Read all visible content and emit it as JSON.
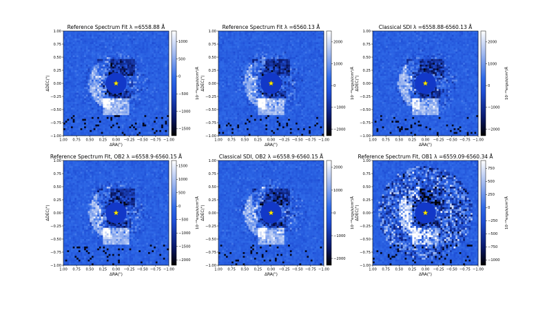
{
  "figure": {
    "colormap": [
      "#000000",
      "#0a1a6e",
      "#1f4fd6",
      "#2f6ae8",
      "#9fb8f0",
      "#ffffff"
    ],
    "mask_color": "#1238c8",
    "star_color": "#ffe800",
    "axis_labels": {
      "x": "ΔRA(\")",
      "y": "ΔDEC(\")"
    },
    "colorbar_label": "10⁻¹⁶ergs/s/cm²/Å",
    "x_ticks": [
      "1.00",
      "0.75",
      "0.50",
      "0.25",
      "0.00",
      "−0.25",
      "−0.50",
      "−0.75",
      "−1.00"
    ],
    "y_ticks": [
      "1.00",
      "0.75",
      "0.50",
      "0.25",
      "0.00",
      "−0.25",
      "−0.50",
      "−0.75",
      "−1.00"
    ]
  },
  "chart_data": [
    {
      "type": "heatmap",
      "title": "Reference Spectrum Fit λ =6558.88 Å",
      "xlabel": "ΔRA(\")",
      "ylabel": "ΔDEC(\")",
      "xlim": [
        1.0,
        -1.0
      ],
      "ylim": [
        -1.0,
        1.0
      ],
      "colorbar_label": "10⁻¹⁶ergs/s/cm²/Å",
      "colorbar_range": [
        -1700,
        1300
      ],
      "colorbar_ticks": [
        "1000",
        "500",
        "0",
        "−500",
        "−1000",
        "−1500"
      ],
      "colorbar_tick_values": [
        1000,
        500,
        0,
        -500,
        -1000,
        -1500
      ],
      "mask_radius_arcsec": 0.2,
      "star_position": [
        0.0,
        0.0
      ]
    },
    {
      "type": "heatmap",
      "title": "Reference Spectrum Fit λ =6560.13 Å",
      "xlabel": "ΔRA(\")",
      "ylabel": "ΔDEC(\")",
      "xlim": [
        1.0,
        -1.0
      ],
      "ylim": [
        -1.0,
        1.0
      ],
      "colorbar_label": "10⁻¹⁶ergs/s/cm²/Å",
      "colorbar_range": [
        -2300,
        2500
      ],
      "colorbar_ticks": [
        "2000",
        "1000",
        "0",
        "−1000",
        "−2000"
      ],
      "colorbar_tick_values": [
        2000,
        1000,
        0,
        -1000,
        -2000
      ],
      "mask_radius_arcsec": 0.2,
      "star_position": [
        0.0,
        0.0
      ]
    },
    {
      "type": "heatmap",
      "title": "Classical SDI λ =6558.88-6560.13 Å",
      "xlabel": "ΔRA(\")",
      "ylabel": "ΔDEC(\")",
      "xlim": [
        1.0,
        -1.0
      ],
      "ylim": [
        -1.0,
        1.0
      ],
      "colorbar_label": "10⁻¹⁶ergs/s/cm²/Å",
      "colorbar_range": [
        -2300,
        2500
      ],
      "colorbar_ticks": [
        "2000",
        "1000",
        "0",
        "−1000",
        "−2000"
      ],
      "colorbar_tick_values": [
        2000,
        1000,
        0,
        -1000,
        -2000
      ],
      "mask_radius_arcsec": 0.2,
      "star_position": [
        0.0,
        0.0
      ]
    },
    {
      "type": "heatmap",
      "title": "Reference Spectrum Fit, OB2 λ =6558.9-6560.15 Å",
      "xlabel": "ΔRA(\")",
      "ylabel": "ΔDEC(\")",
      "xlim": [
        1.0,
        -1.0
      ],
      "ylim": [
        -1.0,
        1.0
      ],
      "colorbar_label": "10⁻¹⁶ergs/s/cm²/Å",
      "colorbar_range": [
        -2200,
        1700
      ],
      "colorbar_ticks": [
        "1500",
        "1000",
        "500",
        "0",
        "−500",
        "−1000",
        "−1500",
        "−2000"
      ],
      "colorbar_tick_values": [
        1500,
        1000,
        500,
        0,
        -500,
        -1000,
        -1500,
        -2000
      ],
      "mask_radius_arcsec": 0.2,
      "star_position": [
        0.0,
        0.0
      ]
    },
    {
      "type": "heatmap",
      "title": "Classical SDI, OB2 λ =6558.9-6560.15 Å",
      "xlabel": "ΔRA(\")",
      "ylabel": "ΔDEC(\")",
      "xlim": [
        1.0,
        -1.0
      ],
      "ylim": [
        -1.0,
        1.0
      ],
      "colorbar_label": "10⁻¹⁶ergs/s/cm²/Å",
      "colorbar_range": [
        -2300,
        2300
      ],
      "colorbar_ticks": [
        "2000",
        "1000",
        "0",
        "−1000",
        "−2000"
      ],
      "colorbar_tick_values": [
        2000,
        1000,
        0,
        -1000,
        -2000
      ],
      "mask_radius_arcsec": 0.2,
      "star_position": [
        0.0,
        0.0
      ]
    },
    {
      "type": "heatmap",
      "title": "Reference Spectrum Fit, OB1 λ =6559.09-6560.34 Å",
      "xlabel": "ΔRA(\")",
      "ylabel": "ΔDEC(\")",
      "xlim": [
        1.0,
        -1.0
      ],
      "ylim": [
        -1.0,
        1.0
      ],
      "colorbar_label": "10⁻¹⁶ergs/s/cm²/Å",
      "colorbar_range": [
        -1100,
        900
      ],
      "colorbar_ticks": [
        "750",
        "500",
        "250",
        "0",
        "−250",
        "−500",
        "−750",
        "−1000"
      ],
      "colorbar_tick_values": [
        750,
        500,
        250,
        0,
        -250,
        -500,
        -750,
        -1000
      ],
      "mask_radius_arcsec": 0.2,
      "star_position": [
        0.0,
        0.0
      ]
    }
  ]
}
